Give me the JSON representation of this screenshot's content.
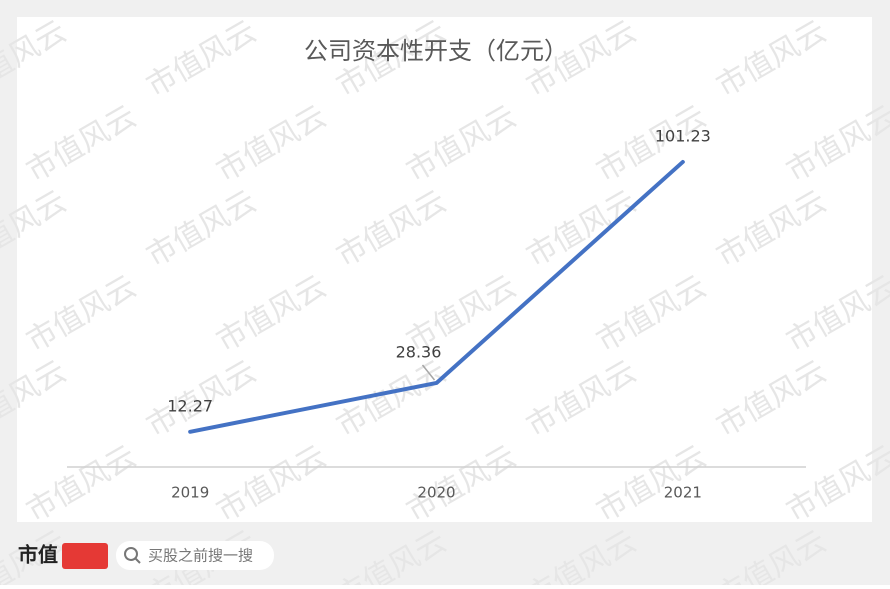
{
  "chart_data": {
    "type": "line",
    "title": "公司资本性开支（亿元）",
    "categories": [
      "2019",
      "2020",
      "2021"
    ],
    "series": [
      {
        "name": "公司资本性开支",
        "color": "#4472c4",
        "values": [
          12.27,
          28.36,
          101.23
        ]
      }
    ],
    "ylim": [
      0,
      120
    ],
    "data_labels": true
  },
  "watermark": "市值风云",
  "footer": {
    "logo": "市值",
    "search": "买股之前搜一搜"
  }
}
